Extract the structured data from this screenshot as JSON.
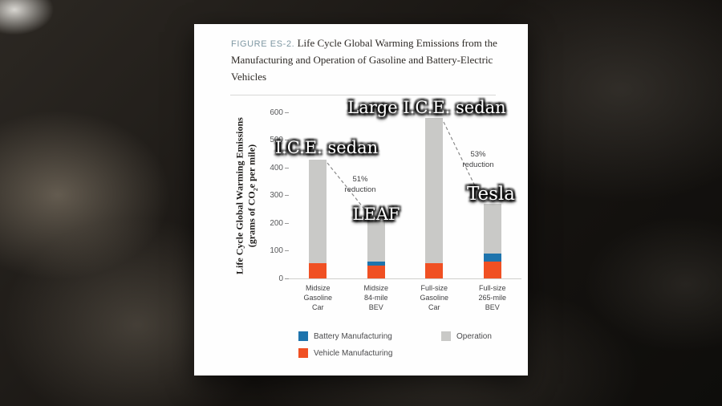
{
  "figure": {
    "label": "FIGURE ES-2.",
    "title": "Life Cycle Global Warming Emissions from the Manufacturing and Operation of Gasoline and Battery-Electric Vehicles"
  },
  "y_axis": {
    "title_line1": "Life Cycle Global Warming Emissions",
    "title_line2_pre": "(grams of CO",
    "title_line2_sub": "2",
    "title_line2_post": "e per mile)"
  },
  "chart_data": {
    "type": "bar",
    "stacked": true,
    "title": "FIGURE ES-2. Life Cycle Global Warming Emissions from the Manufacturing and Operation of Gasoline and Battery-Electric Vehicles",
    "ylabel": "Life Cycle Global Warming Emissions (grams of CO2e per mile)",
    "ylim": [
      0,
      600
    ],
    "yticks": [
      0,
      100,
      200,
      300,
      400,
      500,
      600
    ],
    "grid": false,
    "legend_position": "bottom",
    "categories": [
      "Midsize\nGasoline\nCar",
      "Midsize\n84-mile\nBEV",
      "Full-size\nGasoline\nCar",
      "Full-size\n265-mile\nBEV"
    ],
    "series": [
      {
        "name": "Vehicle Manufacturing",
        "color": "#f05023",
        "values": [
          55,
          45,
          55,
          60
        ]
      },
      {
        "name": "Battery Manufacturing",
        "color": "#1e74ad",
        "values": [
          0,
          15,
          0,
          30
        ]
      },
      {
        "name": "Operation",
        "color": "#c9c9c7",
        "values": [
          375,
          150,
          525,
          180
        ]
      }
    ],
    "totals": [
      430,
      210,
      580,
      270
    ],
    "annotations": [
      {
        "text": "I.C.E. sedan",
        "target": "Midsize Gasoline Car"
      },
      {
        "text": "Large I.C.E. sedan",
        "target": "Full-size Gasoline Car"
      },
      {
        "text": "LEAF",
        "target": "Midsize 84-mile BEV"
      },
      {
        "text": "Tesla",
        "target": "Full-size 265-mile BEV"
      },
      {
        "text": "51% reduction",
        "between": [
          "Midsize Gasoline Car",
          "Midsize 84-mile BEV"
        ]
      },
      {
        "text": "53% reduction",
        "between": [
          "Full-size Gasoline Car",
          "Full-size 265-mile BEV"
        ]
      }
    ]
  },
  "overlays": {
    "ice_sedan": "I.C.E. sedan",
    "large_ice_sedan": "Large I.C.E. sedan",
    "leaf": "LEAF",
    "tesla": "Tesla",
    "reduction_left": "51%\nreduction",
    "reduction_right": "53%\nreduction"
  },
  "legend": {
    "items": [
      {
        "label": "Battery Manufacturing",
        "color": "#1e74ad"
      },
      {
        "label": "Operation",
        "color": "#c9c9c7"
      },
      {
        "label": "Vehicle Manufacturing",
        "color": "#f05023"
      }
    ]
  }
}
